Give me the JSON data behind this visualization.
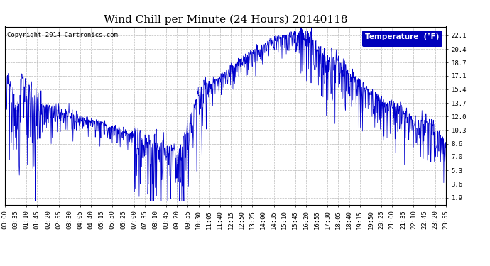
{
  "title": "Wind Chill per Minute (24 Hours) 20140118",
  "copyright": "Copyright 2014 Cartronics.com",
  "legend_label": "Temperature  (°F)",
  "background_color": "#ffffff",
  "plot_bg_color": "#ffffff",
  "line_color": "#0000cc",
  "legend_bg": "#0000bb",
  "legend_fg": "#ffffff",
  "yticks": [
    1.9,
    3.6,
    5.3,
    7.0,
    8.6,
    10.3,
    12.0,
    13.7,
    15.4,
    17.1,
    18.7,
    20.4,
    22.1
  ],
  "ylim": [
    1.0,
    23.2
  ],
  "xtick_labels": [
    "00:00",
    "00:35",
    "01:10",
    "01:45",
    "02:20",
    "02:55",
    "03:30",
    "04:05",
    "04:40",
    "05:15",
    "05:50",
    "06:25",
    "07:00",
    "07:35",
    "08:10",
    "08:45",
    "09:20",
    "09:55",
    "10:30",
    "11:05",
    "11:40",
    "12:15",
    "12:50",
    "13:25",
    "14:00",
    "14:35",
    "15:10",
    "15:45",
    "16:20",
    "16:55",
    "17:30",
    "18:05",
    "18:40",
    "19:15",
    "19:50",
    "20:25",
    "21:00",
    "21:35",
    "22:10",
    "22:45",
    "23:20",
    "23:55"
  ],
  "grid_color": "#bbbbbb",
  "grid_linestyle": "--",
  "title_fontsize": 11,
  "axis_fontsize": 6.5,
  "copyright_fontsize": 6.5
}
